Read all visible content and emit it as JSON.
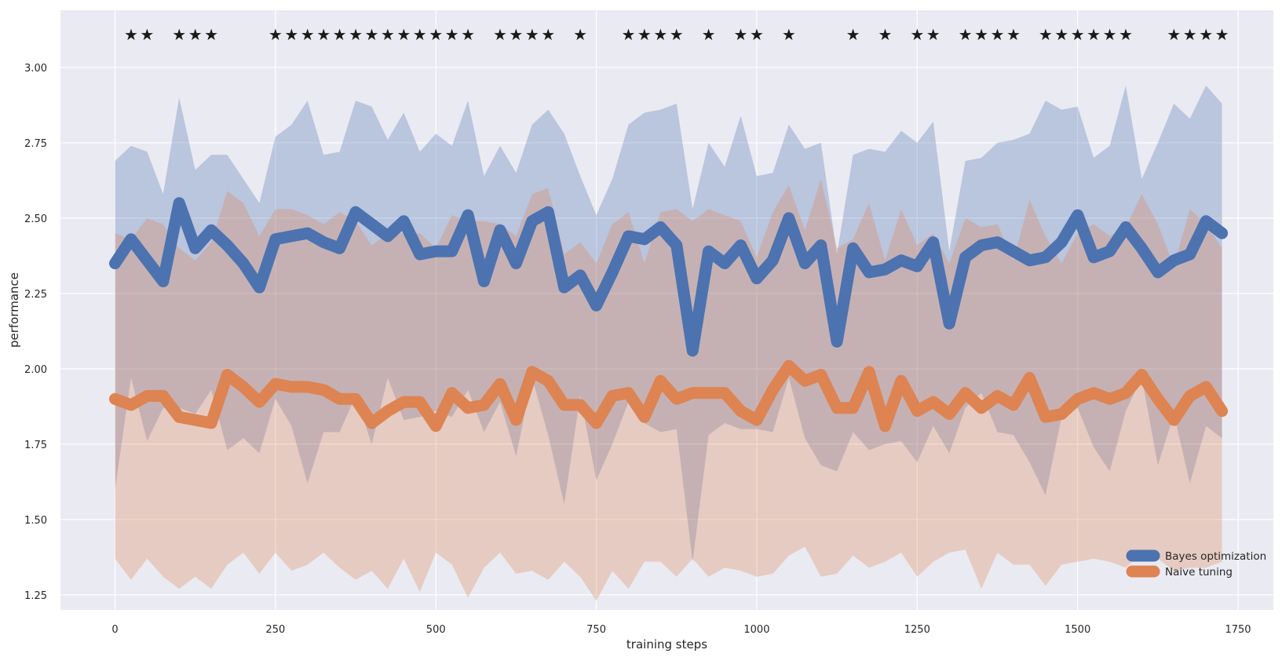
{
  "chart_data": {
    "type": "line",
    "xlabel": "training steps",
    "ylabel": "performance",
    "xlim": [
      -85,
      1805
    ],
    "ylim": [
      1.2,
      3.19
    ],
    "x_ticks": [
      0,
      250,
      500,
      750,
      1000,
      1250,
      1500,
      1750
    ],
    "y_ticks": [
      1.25,
      1.5,
      1.75,
      2.0,
      2.25,
      2.5,
      2.75,
      3.0
    ],
    "grid": true,
    "legend_position": "lower-right",
    "x": [
      0,
      25,
      50,
      75,
      100,
      125,
      150,
      175,
      200,
      225,
      250,
      275,
      300,
      325,
      350,
      375,
      400,
      425,
      450,
      475,
      500,
      525,
      550,
      575,
      600,
      625,
      650,
      675,
      700,
      725,
      750,
      775,
      800,
      825,
      850,
      875,
      900,
      925,
      950,
      975,
      1000,
      1025,
      1050,
      1075,
      1100,
      1125,
      1150,
      1175,
      1200,
      1225,
      1250,
      1275,
      1300,
      1325,
      1350,
      1375,
      1400,
      1425,
      1450,
      1475,
      1500,
      1525,
      1550,
      1575,
      1600,
      1625,
      1650,
      1675,
      1700,
      1725
    ],
    "significance_steps": [
      25,
      50,
      100,
      125,
      150,
      250,
      275,
      300,
      325,
      350,
      375,
      400,
      425,
      450,
      475,
      500,
      525,
      550,
      600,
      625,
      650,
      675,
      725,
      800,
      825,
      850,
      875,
      925,
      975,
      1000,
      1050,
      1150,
      1200,
      1250,
      1275,
      1325,
      1350,
      1375,
      1400,
      1450,
      1475,
      1500,
      1525,
      1550,
      1575,
      1650,
      1675,
      1700,
      1725
    ],
    "significance_marker": "★",
    "series": [
      {
        "name": "Bayes optimization",
        "color": "#4c72b0",
        "values": [
          2.35,
          2.43,
          2.36,
          2.29,
          2.55,
          2.4,
          2.46,
          2.41,
          2.35,
          2.27,
          2.43,
          2.44,
          2.45,
          2.42,
          2.4,
          2.52,
          2.48,
          2.44,
          2.49,
          2.38,
          2.39,
          2.39,
          2.51,
          2.29,
          2.46,
          2.35,
          2.49,
          2.52,
          2.27,
          2.31,
          2.21,
          2.32,
          2.44,
          2.43,
          2.47,
          2.41,
          2.06,
          2.39,
          2.35,
          2.41,
          2.3,
          2.36,
          2.5,
          2.35,
          2.41,
          2.09,
          2.4,
          2.32,
          2.33,
          2.36,
          2.34,
          2.42,
          2.15,
          2.37,
          2.41,
          2.42,
          2.39,
          2.36,
          2.37,
          2.42,
          2.51,
          2.37,
          2.39,
          2.47,
          2.4,
          2.32,
          2.36,
          2.38,
          2.49,
          2.45
        ],
        "upper": [
          2.69,
          2.74,
          2.72,
          2.58,
          2.9,
          2.66,
          2.71,
          2.71,
          2.63,
          2.55,
          2.77,
          2.81,
          2.89,
          2.71,
          2.72,
          2.89,
          2.87,
          2.76,
          2.85,
          2.72,
          2.78,
          2.74,
          2.89,
          2.64,
          2.74,
          2.65,
          2.81,
          2.86,
          2.78,
          2.64,
          2.51,
          2.63,
          2.81,
          2.85,
          2.86,
          2.88,
          2.53,
          2.75,
          2.67,
          2.84,
          2.64,
          2.65,
          2.81,
          2.73,
          2.75,
          2.38,
          2.71,
          2.73,
          2.72,
          2.79,
          2.75,
          2.82,
          2.39,
          2.69,
          2.7,
          2.75,
          2.76,
          2.78,
          2.89,
          2.86,
          2.87,
          2.7,
          2.74,
          2.94,
          2.63,
          2.75,
          2.88,
          2.83,
          2.94,
          2.88
        ],
        "lower": [
          1.6,
          1.97,
          1.76,
          1.87,
          1.87,
          1.85,
          1.93,
          1.73,
          1.77,
          1.72,
          1.9,
          1.81,
          1.62,
          1.79,
          1.79,
          1.91,
          1.75,
          1.97,
          1.83,
          1.84,
          1.86,
          1.84,
          1.93,
          1.79,
          1.89,
          1.71,
          1.97,
          1.78,
          1.55,
          1.91,
          1.63,
          1.75,
          1.89,
          1.82,
          1.79,
          1.8,
          1.36,
          1.78,
          1.82,
          1.8,
          1.8,
          1.79,
          1.97,
          1.77,
          1.68,
          1.66,
          1.79,
          1.73,
          1.75,
          1.76,
          1.69,
          1.81,
          1.72,
          1.87,
          1.92,
          1.79,
          1.78,
          1.69,
          1.58,
          1.84,
          1.87,
          1.74,
          1.66,
          1.86,
          1.97,
          1.68,
          1.85,
          1.62,
          1.81,
          1.77
        ]
      },
      {
        "name": "Naive tuning",
        "color": "#dd8452",
        "values": [
          1.9,
          1.88,
          1.91,
          1.91,
          1.84,
          1.83,
          1.82,
          1.98,
          1.94,
          1.89,
          1.95,
          1.94,
          1.94,
          1.93,
          1.9,
          1.9,
          1.82,
          1.86,
          1.89,
          1.89,
          1.81,
          1.92,
          1.87,
          1.88,
          1.95,
          1.83,
          1.99,
          1.96,
          1.88,
          1.88,
          1.82,
          1.91,
          1.92,
          1.84,
          1.96,
          1.9,
          1.92,
          1.92,
          1.92,
          1.86,
          1.83,
          1.93,
          2.01,
          1.96,
          1.98,
          1.87,
          1.87,
          1.99,
          1.81,
          1.96,
          1.86,
          1.89,
          1.85,
          1.92,
          1.87,
          1.91,
          1.88,
          1.97,
          1.84,
          1.85,
          1.9,
          1.92,
          1.9,
          1.92,
          1.98,
          1.9,
          1.83,
          1.91,
          1.94,
          1.86
        ],
        "upper": [
          2.45,
          2.43,
          2.5,
          2.48,
          2.4,
          2.36,
          2.42,
          2.59,
          2.55,
          2.44,
          2.53,
          2.53,
          2.51,
          2.48,
          2.52,
          2.49,
          2.41,
          2.45,
          2.45,
          2.45,
          2.4,
          2.51,
          2.49,
          2.49,
          2.48,
          2.44,
          2.58,
          2.6,
          2.38,
          2.42,
          2.35,
          2.48,
          2.52,
          2.35,
          2.52,
          2.53,
          2.49,
          2.53,
          2.51,
          2.49,
          2.37,
          2.52,
          2.61,
          2.46,
          2.63,
          2.4,
          2.43,
          2.55,
          2.36,
          2.53,
          2.41,
          2.45,
          2.35,
          2.5,
          2.47,
          2.48,
          2.36,
          2.56,
          2.44,
          2.35,
          2.45,
          2.48,
          2.44,
          2.47,
          2.58,
          2.48,
          2.34,
          2.53,
          2.48,
          2.4
        ],
        "lower": [
          1.37,
          1.3,
          1.37,
          1.31,
          1.27,
          1.31,
          1.27,
          1.35,
          1.39,
          1.32,
          1.39,
          1.33,
          1.35,
          1.39,
          1.34,
          1.3,
          1.33,
          1.27,
          1.37,
          1.26,
          1.39,
          1.35,
          1.24,
          1.34,
          1.39,
          1.32,
          1.33,
          1.3,
          1.36,
          1.31,
          1.23,
          1.33,
          1.27,
          1.36,
          1.36,
          1.31,
          1.37,
          1.31,
          1.34,
          1.33,
          1.31,
          1.32,
          1.38,
          1.41,
          1.31,
          1.32,
          1.38,
          1.34,
          1.36,
          1.39,
          1.31,
          1.36,
          1.39,
          1.4,
          1.27,
          1.39,
          1.35,
          1.35,
          1.28,
          1.35,
          1.36,
          1.37,
          1.36,
          1.34,
          1.39,
          1.37,
          1.33,
          1.34,
          1.34,
          1.36
        ]
      }
    ]
  }
}
